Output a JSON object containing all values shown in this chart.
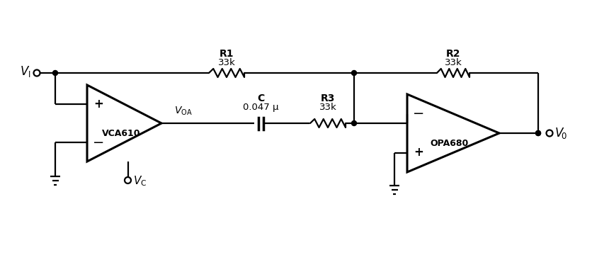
{
  "bg_color": "#ffffff",
  "line_color": "#000000",
  "figsize": [
    8.6,
    3.84
  ],
  "dpi": 100,
  "vca610_label": "VCA610",
  "opa680_label": "OPA680",
  "vi_label": "$V_{\\mathrm{I}}$",
  "vo_label": "$V_{\\!0}$",
  "vc_label": "$V_{\\mathrm{C}}$",
  "voa_label": "$V_{\\mathrm{OA}}$",
  "plus": "+",
  "minus": "−",
  "r1_top": "R1",
  "r1_bot": "33k",
  "r2_top": "R2",
  "r2_bot": "33k",
  "r3_top": "R3",
  "r3_bot": "33k",
  "c_top": "C",
  "c_bot": "0.047 μ"
}
